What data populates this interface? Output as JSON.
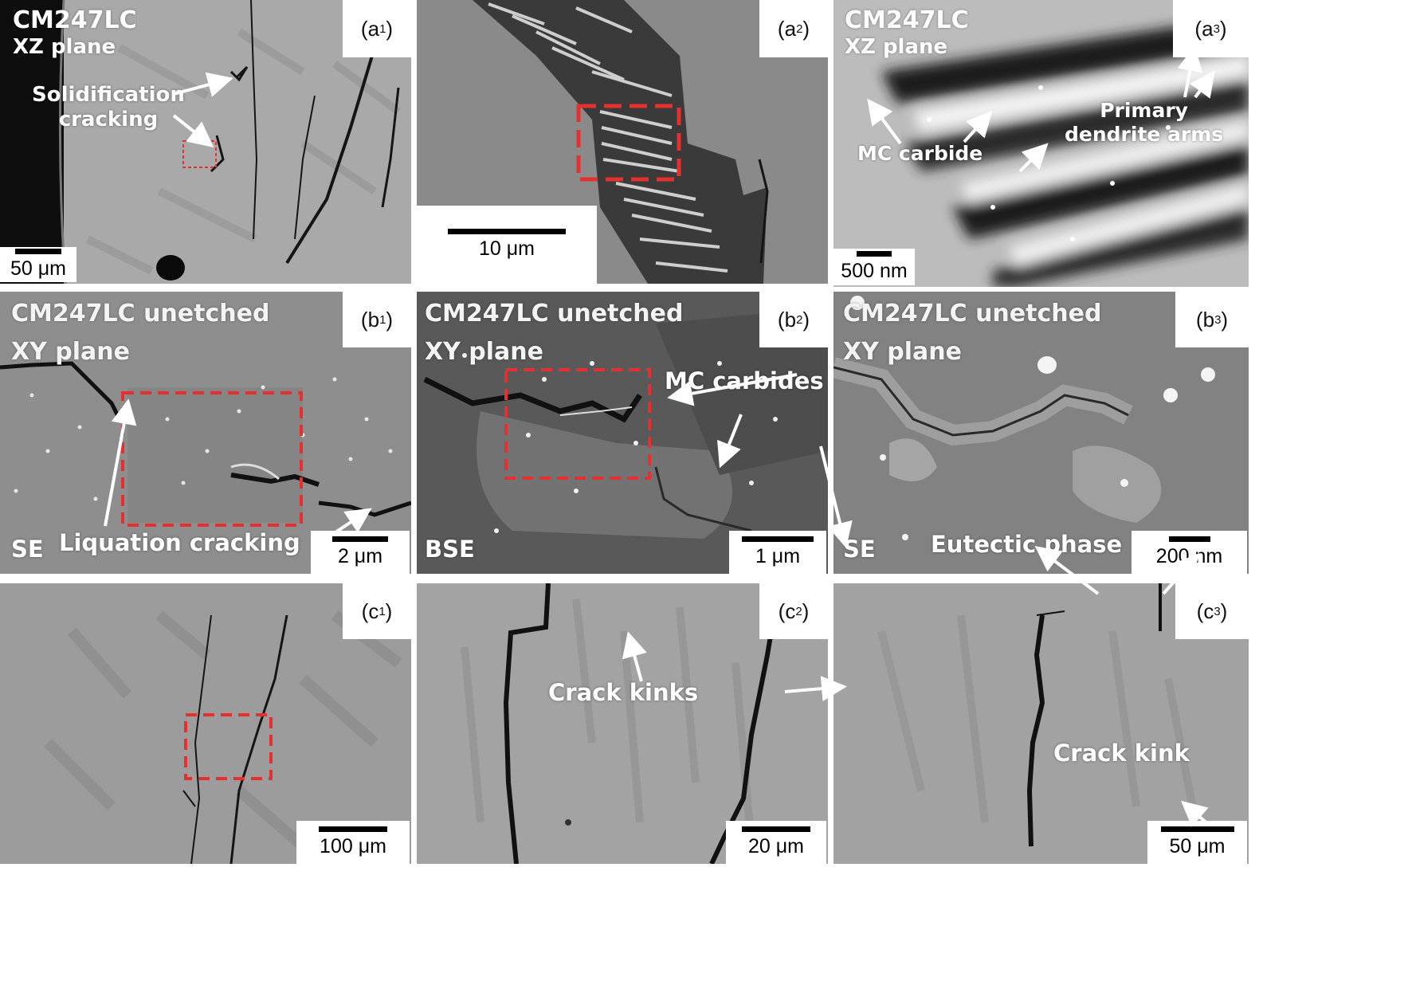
{
  "panels": {
    "a1": {
      "label": "a",
      "sub": "1",
      "title": "CM247LC",
      "subtitle": "XZ plane",
      "annotation": "Solidification\ncracking",
      "scale": "50 μm"
    },
    "a2": {
      "label": "a",
      "sub": "2",
      "scale": "10 μm"
    },
    "a3": {
      "label": "a",
      "sub": "3",
      "title": "CM247LC",
      "subtitle": "XZ plane",
      "ann_carbide": "MC carbide",
      "ann_dendrite": "Primary\ndendrite arms",
      "scale": "500 nm"
    },
    "b1": {
      "label": "b",
      "sub": "1",
      "title": "CM247LC unetched",
      "subtitle": "XY plane",
      "mode": "SE",
      "annotation": "Liquation cracking",
      "scale": "2 μm"
    },
    "b2": {
      "label": "b",
      "sub": "2",
      "title": "CM247LC unetched",
      "subtitle": "XY plane",
      "mode": "BSE",
      "annotation": "MC carbides",
      "scale": "1 μm"
    },
    "b3": {
      "label": "b",
      "sub": "3",
      "title": "CM247LC unetched",
      "subtitle": "XY plane",
      "mode": "SE",
      "annotation": "Eutectic phase",
      "scale": "200 nm"
    },
    "c1": {
      "label": "c",
      "sub": "1",
      "scale": "100 μm"
    },
    "c2": {
      "label": "c",
      "sub": "2",
      "annotation": "Crack kinks",
      "scale": "20 μm"
    },
    "c3": {
      "label": "c",
      "sub": "3",
      "annotation": "Crack kink",
      "scale": "50 μm"
    }
  },
  "colors": {
    "highlight_box": "#e53030",
    "annotation": "#ffffff"
  }
}
